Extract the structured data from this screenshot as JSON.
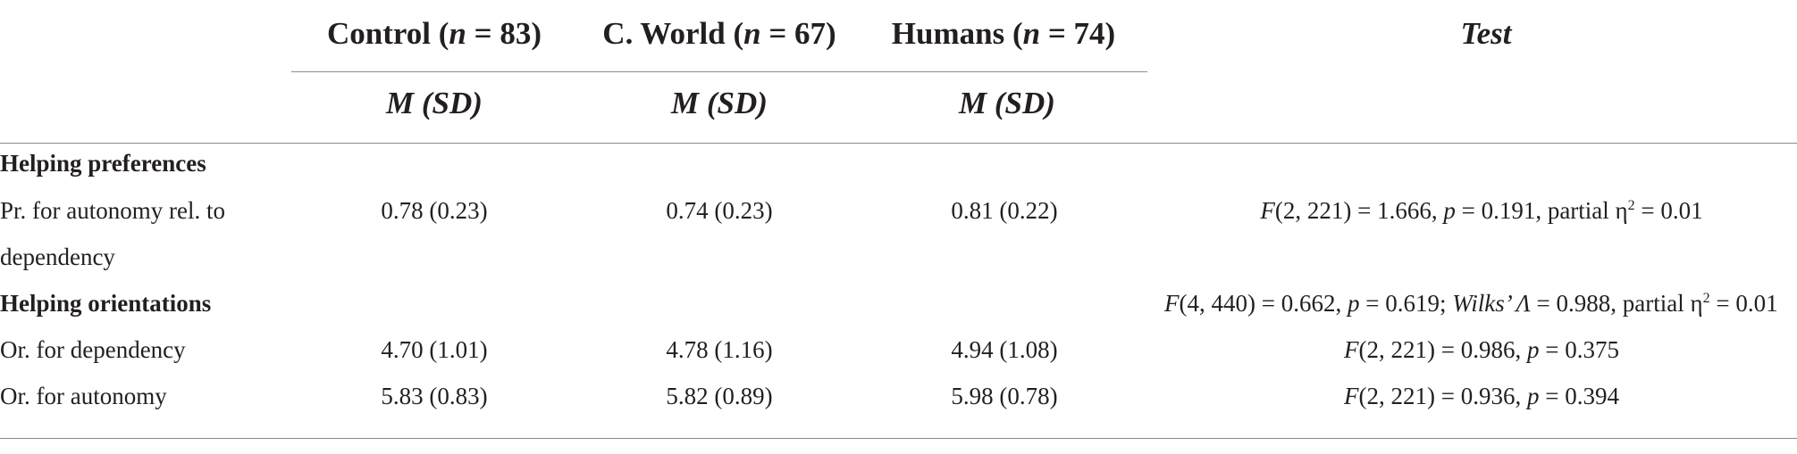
{
  "columns": {
    "control": {
      "label": "Control (",
      "n_symbol": "n",
      "n_value": "83",
      "subheader": "M (SD)"
    },
    "cworld": {
      "label": "C. World (",
      "n_symbol": "n",
      "n_value": "67",
      "subheader": "M (SD)"
    },
    "humans": {
      "label": "Humans (",
      "n_symbol": "n",
      "n_value": "74",
      "subheader": "M (SD)"
    },
    "test": {
      "label": "Test"
    }
  },
  "rows": {
    "helping_preferences": {
      "label": "Helping preferences"
    },
    "pr_autonomy": {
      "label_line1": "Pr. for autonomy rel. to",
      "label_line2": "dependency",
      "control": "0.78 (0.23)",
      "cworld": "0.74 (0.23)",
      "humans": "0.81 (0.22)",
      "test": {
        "stat": "F",
        "df": "(2, 221)",
        "value": "1.666",
        "p": "0.191",
        "effect_label": "partial η",
        "effect_power": "2",
        "effect_value": "0.01"
      }
    },
    "helping_orientations": {
      "label": "Helping orientations",
      "test": {
        "stat": "F",
        "df": "(4, 440)",
        "value": "0.662",
        "p": "0.619",
        "wilks_label": "Wilks’ Λ",
        "wilks_value": "0.988",
        "effect_label": "partial η",
        "effect_power": "2",
        "effect_value": "0.01"
      }
    },
    "or_dependency": {
      "label": "Or. for dependency",
      "control": "4.70 (1.01)",
      "cworld": "4.78 (1.16)",
      "humans": "4.94 (1.08)",
      "test": {
        "stat": "F",
        "df": "(2, 221)",
        "value": "0.986",
        "p": "0.375"
      }
    },
    "or_autonomy": {
      "label": "Or. for autonomy",
      "control": "5.83 (0.83)",
      "cworld": "5.82 (0.89)",
      "humans": "5.98 (0.78)",
      "test": {
        "stat": "F",
        "df": "(2, 221)",
        "value": "0.936",
        "p": "0.394"
      }
    }
  }
}
